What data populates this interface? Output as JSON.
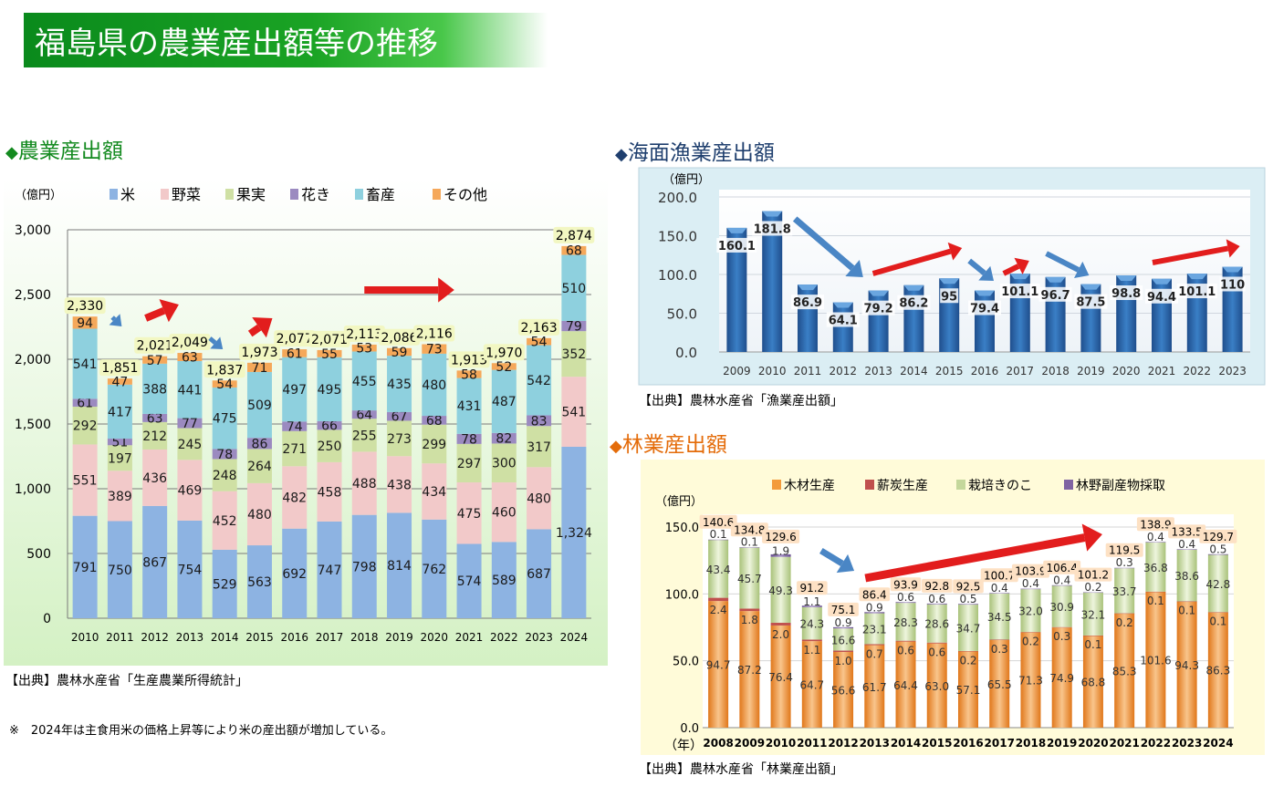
{
  "page": {
    "title": "福島県の農業産出額等の推移",
    "note": "※　2024年は主食用米の価格上昇等により米の産出額が増加している。"
  },
  "agri": {
    "section_title": "農業産出額",
    "source": "【出典】農林水産省「生産農業所得統計」"
  },
  "fish": {
    "section_title": "海面漁業産出額",
    "source": "【出典】農林水産省「漁業産出額」"
  },
  "forest": {
    "section_title": "林業産出額",
    "source": "【出典】農林水産省「林業産出額」"
  },
  "colors": {
    "rice": "#8db3e2",
    "veg": "#f2c9c9",
    "fruit": "#cfe0a4",
    "flower": "#9b8ac0",
    "livestock": "#8ed0de",
    "other": "#f5a85a",
    "arrow_red": "#e21d1d",
    "arrow_blue": "#4a86c5",
    "fish_bar": "#2f6fb5",
    "wood": "#f39b3c",
    "charcoal": "#c0504d",
    "mushroom": "#c4d79b",
    "forest_other": "#8064a2",
    "title_green": "#1aa324",
    "section_green": "#138a1f",
    "section_navy": "#1f3f6e",
    "section_orange": "#e46c0a"
  },
  "chart_data": [
    {
      "type": "bar",
      "stacked": true,
      "unit_label": "（億円）",
      "categories": [
        "2010",
        "2011",
        "2012",
        "2013",
        "2014",
        "2015",
        "2016",
        "2017",
        "2018",
        "2019",
        "2020",
        "2021",
        "2022",
        "2023",
        "2024"
      ],
      "series": [
        {
          "name": "米",
          "values": [
            791,
            750,
            867,
            754,
            529,
            563,
            692,
            747,
            798,
            814,
            762,
            574,
            589,
            687,
            1324
          ],
          "labels": [
            "791",
            "750",
            "867",
            "754",
            "529",
            "563",
            "692",
            "747",
            "798",
            "814",
            "762",
            "574",
            "589",
            "687",
            "1,324"
          ]
        },
        {
          "name": "野菜",
          "values": [
            551,
            389,
            436,
            469,
            452,
            480,
            482,
            458,
            488,
            438,
            434,
            475,
            460,
            480,
            541
          ]
        },
        {
          "name": "果実",
          "values": [
            292,
            197,
            212,
            245,
            248,
            264,
            271,
            250,
            255,
            273,
            299,
            297,
            300,
            317,
            352
          ]
        },
        {
          "name": "花き",
          "values": [
            61,
            51,
            63,
            77,
            78,
            86,
            74,
            66,
            64,
            67,
            68,
            78,
            82,
            83,
            79
          ]
        },
        {
          "name": "畜産",
          "values": [
            541,
            417,
            388,
            441,
            475,
            509,
            497,
            495,
            455,
            435,
            480,
            431,
            487,
            542,
            510
          ]
        },
        {
          "name": "その他",
          "values": [
            94,
            47,
            57,
            63,
            54,
            71,
            61,
            55,
            53,
            59,
            73,
            58,
            52,
            54,
            68
          ]
        }
      ],
      "totals": [
        "2,330",
        "1,851",
        "2,021",
        "2,049",
        "1,837",
        "1,973",
        "2,077",
        "2,071",
        "2,113",
        "2,086",
        "2,116",
        "1,913",
        "1,970",
        "2,163",
        "2,874"
      ],
      "y_ticks": [
        "0",
        "500",
        "1,000",
        "1,500",
        "2,000",
        "2,500",
        "3,000"
      ],
      "ylim": [
        0,
        3000
      ],
      "legend_position": "top"
    },
    {
      "type": "bar",
      "unit_label": "（億円）",
      "categories": [
        "2009",
        "2010",
        "2011",
        "2012",
        "2013",
        "2014",
        "2015",
        "2016",
        "2017",
        "2018",
        "2019",
        "2020",
        "2021",
        "2022",
        "2023"
      ],
      "values": [
        160.1,
        181.8,
        86.9,
        64.1,
        79.2,
        86.2,
        95,
        79.4,
        101.1,
        96.7,
        87.5,
        98.8,
        94.4,
        101.1,
        110
      ],
      "labels": [
        "160.1",
        "181.8",
        "86.9",
        "64.1",
        "79.2",
        "86.2",
        "95",
        "79.4",
        "101.1",
        "96.7",
        "87.5",
        "98.8",
        "94.4",
        "101.1",
        "110"
      ],
      "y_ticks": [
        "0.0",
        "50.0",
        "100.0",
        "150.0",
        "200.0"
      ],
      "ylim": [
        0,
        200
      ]
    },
    {
      "type": "bar",
      "stacked": true,
      "unit_label": "（億円）",
      "x_unit": "（年）",
      "categories": [
        "2008",
        "2009",
        "2010",
        "2011",
        "2012",
        "2013",
        "2014",
        "2015",
        "2016",
        "2017",
        "2018",
        "2019",
        "2020",
        "2021",
        "2022",
        "2023",
        "2024"
      ],
      "series": [
        {
          "name": "木材生産",
          "values": [
            94.7,
            87.2,
            76.4,
            64.7,
            56.6,
            61.7,
            64.4,
            63.0,
            57.1,
            65.5,
            71.3,
            74.9,
            68.8,
            85.3,
            101.6,
            94.3,
            86.3
          ]
        },
        {
          "name": "薪炭生産",
          "values": [
            2.4,
            1.8,
            2.0,
            1.1,
            1.0,
            0.7,
            0.6,
            0.6,
            0.2,
            0.3,
            0.2,
            0.3,
            0.1,
            0.2,
            0.1,
            0.1,
            0.1
          ]
        },
        {
          "name": "栽培きのこ",
          "values": [
            43.4,
            45.7,
            49.3,
            24.3,
            16.6,
            23.1,
            28.3,
            28.6,
            34.7,
            34.5,
            32.0,
            30.9,
            32.1,
            33.7,
            36.8,
            38.6,
            42.8
          ]
        },
        {
          "name": "林野副産物採取",
          "values": [
            0.1,
            0.1,
            1.9,
            1.1,
            0.9,
            0.9,
            0.6,
            0.6,
            0.5,
            0.4,
            0.4,
            0.4,
            0.2,
            0.3,
            0.4,
            0.4,
            0.5
          ]
        }
      ],
      "totals": [
        "140.6",
        "134.8",
        "129.6",
        "91.2",
        "75.1",
        "86.4",
        "93.9",
        "92.8",
        "92.5",
        "100.7",
        "103.9",
        "106.4",
        "101.2",
        "119.5",
        "138.9",
        "133.5",
        "129.7"
      ],
      "y_ticks": [
        "0.0",
        "50.0",
        "100.0",
        "150.0"
      ],
      "ylim": [
        0,
        150
      ],
      "legend_position": "top"
    }
  ]
}
